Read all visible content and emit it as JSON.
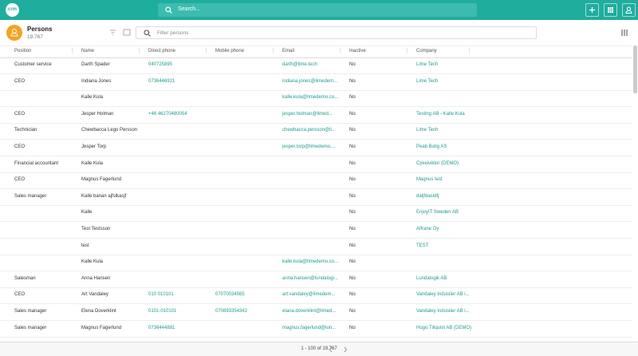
{
  "topbar": {
    "logo": "crm",
    "search_placeholder": "Search..."
  },
  "header": {
    "title": "Persons",
    "count": "19,767",
    "filter_placeholder": "Filter persons"
  },
  "table": {
    "columns": [
      "Position",
      "Name",
      "Direct phone",
      "Mobile phone",
      "Email",
      "Inactive",
      "Company"
    ],
    "rows": [
      [
        "Customer service",
        "Darth Spader",
        "040725895",
        null,
        "darth@lime.tech",
        "No",
        "Lime Tech"
      ],
      [
        "CEO",
        "Indiana Jones",
        "0736446921",
        null,
        "indiana.jones@limedem...",
        "No",
        "Lime Tech"
      ],
      [
        null,
        "Kalle Kula",
        null,
        null,
        "kalle.kula@limedemo.co...",
        "No",
        null
      ],
      [
        "CEO",
        "Jesper Holman",
        "+46 46270480054",
        null,
        "jesper.holman@limed...",
        "No",
        "Testing AB - Kalle Kula"
      ],
      [
        "Technician",
        "Chewbacca Lego Persson",
        null,
        null,
        "chewbacca.persson@li...",
        "No",
        "Lime Tech"
      ],
      [
        "CEO",
        "Jesper Torp",
        null,
        null,
        "jesper.torp@limedemo....",
        "No",
        "Peab Bolig AS"
      ],
      [
        "Financial accountant",
        "Kalle Kula",
        null,
        null,
        null,
        "No",
        "Cykelviktor (DEMO)"
      ],
      [
        "CEO",
        "Magnus Fagerlund",
        null,
        null,
        null,
        "No",
        "Magnus test"
      ],
      [
        "Sales manager",
        "Kalle banan ajfslkasjf",
        null,
        null,
        null,
        "No",
        "daljfdasldfj"
      ],
      [
        null,
        "Kalle",
        null,
        null,
        null,
        "No",
        "EnjoyIT Sweden AB"
      ],
      [
        null,
        "Test Testsson",
        null,
        null,
        null,
        "No",
        "Alfrane Oy"
      ],
      [
        null,
        "test",
        null,
        null,
        null,
        "No",
        "TEST"
      ],
      [
        null,
        "Kalle Kula",
        null,
        null,
        "kalle.kula@limedemo.co...",
        "No",
        null
      ],
      [
        "Salesman",
        "Anna Hansen",
        null,
        null,
        "anna.hansen@lundalogi...",
        "No",
        "Lundalogik AB"
      ],
      [
        "CEO",
        "Art Vandaley",
        "010 010101",
        "07070034565",
        "art.vandaley@limedem...",
        "No",
        "Vandaley Industier AB i..."
      ],
      [
        "Sales manager",
        "Elena Doverklint",
        "0101-010101",
        "070893354342",
        "elana.doverklint@limed...",
        "No",
        "Vandaley Industier AB i..."
      ],
      [
        "Sales manager",
        "Magnus Fagerlund",
        "0736444881",
        null,
        "magnus.fagerlund@lun...",
        "No",
        "Hugo Tiliquist AB (DEMO)"
      ]
    ]
  },
  "footer": {
    "pagination": "1 - 100 of 19,767"
  }
}
